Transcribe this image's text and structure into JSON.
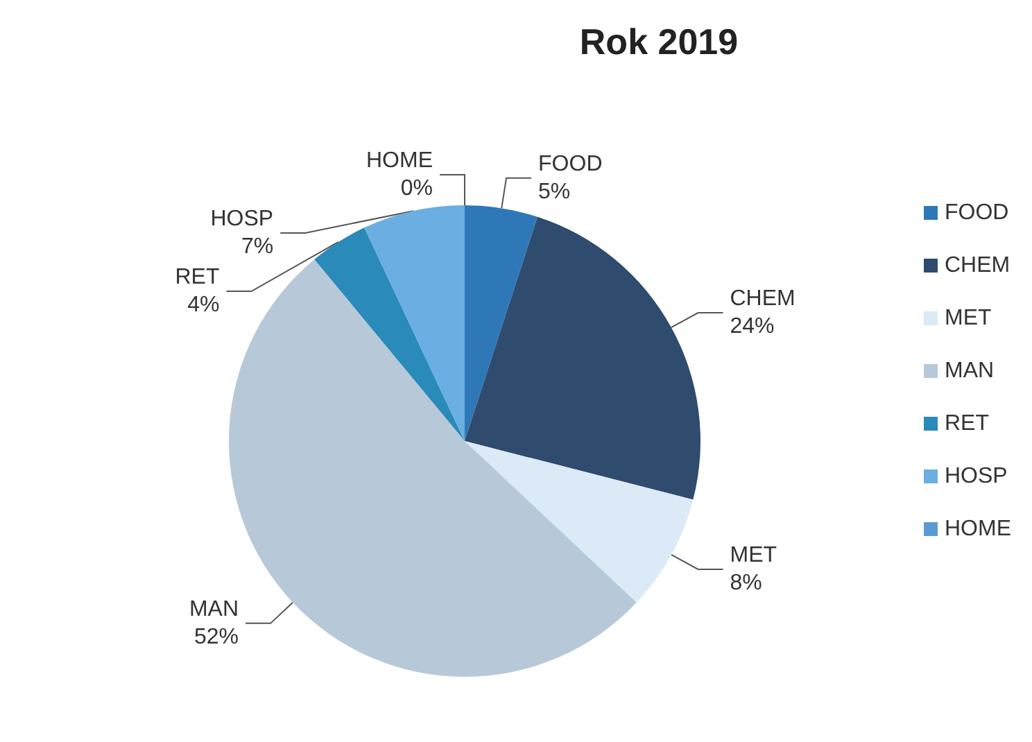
{
  "chart_data": {
    "type": "pie",
    "title": "Rok 2019",
    "categories": [
      "FOOD",
      "CHEM",
      "MET",
      "MAN",
      "RET",
      "HOSP",
      "HOME"
    ],
    "values": [
      5,
      24,
      8,
      52,
      4,
      7,
      0
    ],
    "value_labels": [
      "5%",
      "24%",
      "8%",
      "52%",
      "4%",
      "7%",
      "0%"
    ],
    "colors": [
      "#2f78b8",
      "#2f4b6e",
      "#dbeaf6",
      "#b7c9d9",
      "#2a8ab9",
      "#6aaee2",
      "#5b9bd5"
    ],
    "legend": "right"
  }
}
